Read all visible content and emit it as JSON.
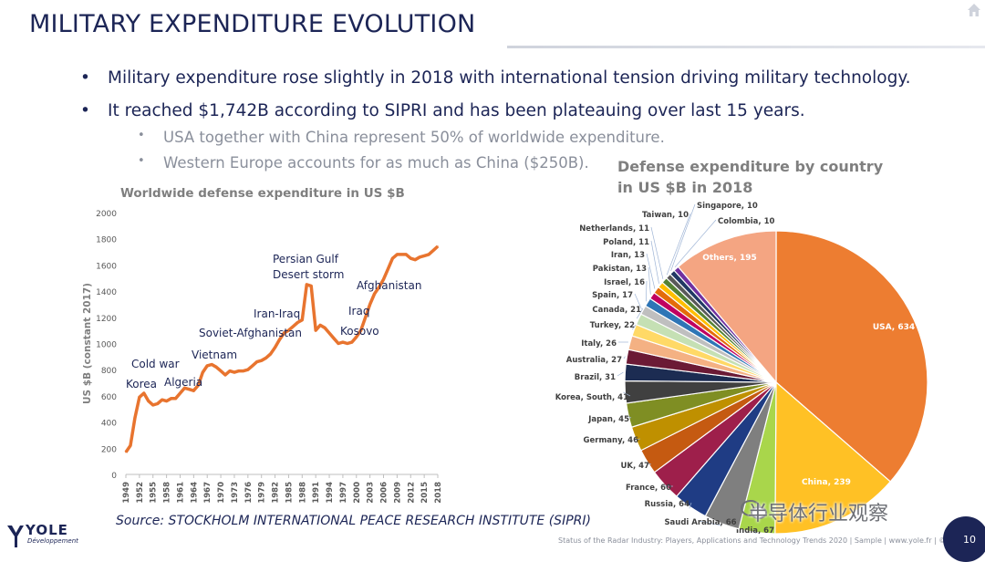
{
  "slide": {
    "title": "MILITARY EXPENDITURE EVOLUTION",
    "bullets": [
      "Military expenditure rose slightly in 2018 with international tension driving military technology.",
      "It reached $1,742B according to SIPRI and has been plateauing over last 15 years."
    ],
    "sub_bullets": [
      "USA together with China represent 50% of worldwide expenditure.",
      "Western Europe accounts for as much as China ($250B)."
    ],
    "source": "Source: STOCKHOLM INTERNATIONAL PEACE RESEARCH INSTITUTE (SIPRI)",
    "footer": "Status of the Radar Industry: Players, Applications and Technology Trends 2020 | Sample | www.yole.fr | ©2020",
    "page_number": "10",
    "logo_text": "YOLE",
    "logo_sub": "Développement",
    "watermark": "半导体行业观察",
    "colors": {
      "title": "#1c2556",
      "line": "#e8742f",
      "accent_bar": "#1c2556"
    }
  },
  "chart_data": [
    {
      "type": "line",
      "title": "Worldwide defense expenditure in US $B",
      "ylabel": "US $B (constant 2017)",
      "xlabel": "",
      "ylim": [
        0,
        2000
      ],
      "yticks": [
        "0",
        "200",
        "400",
        "600",
        "800",
        "1000",
        "1200",
        "1400",
        "1600",
        "1800",
        "2000"
      ],
      "xticks": [
        "1949",
        "1952",
        "1955",
        "1958",
        "1961",
        "1964",
        "1967",
        "1970",
        "1973",
        "1976",
        "1979",
        "1982",
        "1985",
        "1988",
        "1991",
        "1994",
        "1997",
        "2000",
        "2003",
        "2006",
        "2009",
        "2012",
        "2015",
        "2018"
      ],
      "grid": false,
      "series": [
        {
          "x": [
            1949,
            1950,
            1951,
            1952,
            1953,
            1954,
            1955,
            1956,
            1957,
            1958,
            1959,
            1960,
            1961,
            1962,
            1963,
            1964,
            1965,
            1966,
            1967,
            1968,
            1969,
            1970,
            1971,
            1972,
            1973,
            1974,
            1975,
            1976,
            1977,
            1978,
            1979,
            1980,
            1981,
            1982,
            1983,
            1984,
            1985,
            1986,
            1987,
            1988,
            1989,
            1990,
            1991,
            1992,
            1993,
            1994,
            1995,
            1996,
            1997,
            1998,
            1999,
            2000,
            2001,
            2002,
            2003,
            2004,
            2005,
            2006,
            2007,
            2008,
            2009,
            2010,
            2011,
            2012,
            2013,
            2014,
            2015,
            2016,
            2017,
            2018
          ],
          "values": [
            170,
            220,
            430,
            590,
            620,
            560,
            530,
            540,
            570,
            560,
            580,
            580,
            620,
            660,
            650,
            640,
            680,
            780,
            830,
            840,
            820,
            790,
            760,
            790,
            780,
            790,
            790,
            800,
            830,
            860,
            870,
            890,
            920,
            970,
            1030,
            1080,
            1100,
            1130,
            1160,
            1180,
            1450,
            1440,
            1100,
            1140,
            1120,
            1080,
            1040,
            1000,
            1010,
            1000,
            1010,
            1050,
            1100,
            1200,
            1300,
            1380,
            1430,
            1490,
            1570,
            1650,
            1680,
            1680,
            1680,
            1650,
            1640,
            1660,
            1670,
            1680,
            1710,
            1742
          ]
        }
      ],
      "annotations": [
        "Korea",
        "Cold war",
        "Algeria",
        "Vietnam",
        "Soviet-Afghanistan",
        "Iran-Iraq",
        "Persian Gulf",
        "Desert storm",
        "Iraq",
        "Kosovo",
        "Afghanistan"
      ]
    },
    {
      "type": "pie",
      "title": "Defense expenditure by country in US $B in 2018",
      "slices": [
        {
          "label": "USA, 634",
          "value": 634,
          "color": "#ed7d31"
        },
        {
          "label": "China, 239",
          "value": 239,
          "color": "#ffc125"
        },
        {
          "label": "India, 67",
          "value": 67,
          "color": "#a9d64b"
        },
        {
          "label": "Saudi Arabia, 66",
          "value": 66,
          "color": "#7f7f7f"
        },
        {
          "label": "Russia, 64",
          "value": 64,
          "color": "#1f3c84"
        },
        {
          "label": "France, 60",
          "value": 60,
          "color": "#9e1f4b"
        },
        {
          "label": "UK, 47",
          "value": 47,
          "color": "#c55a11"
        },
        {
          "label": "Germany, 46",
          "value": 46,
          "color": "#bf9000"
        },
        {
          "label": "Japan, 45",
          "value": 45,
          "color": "#7f8e23"
        },
        {
          "label": "Korea, South, 41",
          "value": 41,
          "color": "#404040"
        },
        {
          "label": "Brazil, 31",
          "value": 31,
          "color": "#1c2c52"
        },
        {
          "label": "Australia, 27",
          "value": 27,
          "color": "#6b1a35"
        },
        {
          "label": "Italy, 26",
          "value": 26,
          "color": "#f4b183"
        },
        {
          "label": "Turkey, 22",
          "value": 22,
          "color": "#ffd966"
        },
        {
          "label": "Canada, 21",
          "value": 21,
          "color": "#c5e0b4"
        },
        {
          "label": "Spain, 17",
          "value": 17,
          "color": "#bfbfbf"
        },
        {
          "label": "Israel, 16",
          "value": 16,
          "color": "#2e75b6"
        },
        {
          "label": "Pakistan, 13",
          "value": 13,
          "color": "#c00060"
        },
        {
          "label": "Iran, 13",
          "value": 13,
          "color": "#e46c0a"
        },
        {
          "label": "Poland, 11",
          "value": 11,
          "color": "#ffbf00"
        },
        {
          "label": "Netherlands, 11",
          "value": 11,
          "color": "#548235"
        },
        {
          "label": "Taiwan, 10",
          "value": 10,
          "color": "#595959"
        },
        {
          "label": "Singapore, 10",
          "value": 10,
          "color": "#203864"
        },
        {
          "label": "Colombia, 10",
          "value": 10,
          "color": "#7030a0"
        },
        {
          "label": "Others, 195",
          "value": 195,
          "color": "#f4a582"
        }
      ]
    }
  ]
}
